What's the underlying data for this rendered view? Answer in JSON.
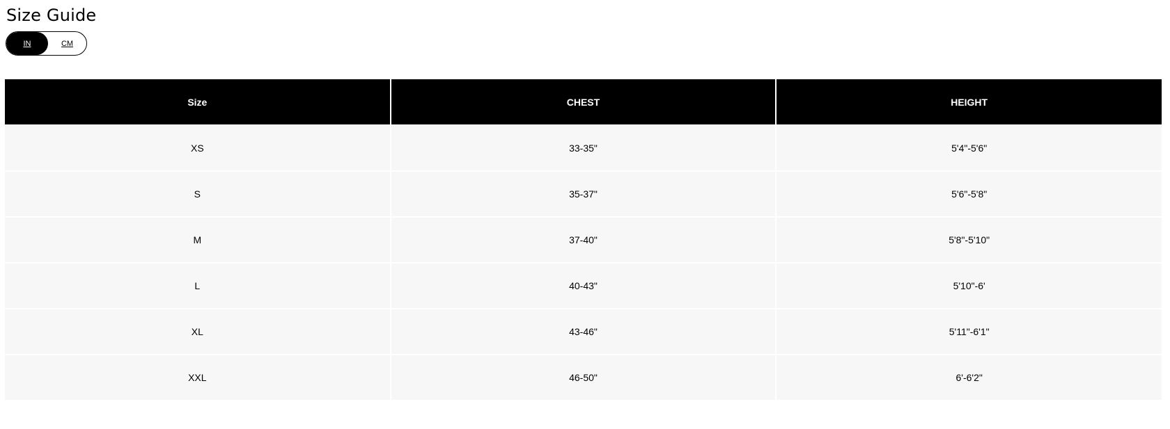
{
  "title": "Size Guide",
  "unit_toggle": {
    "options": [
      "IN",
      "CM"
    ],
    "selected": "IN"
  },
  "table": {
    "headers": [
      "Size",
      "CHEST",
      "HEIGHT"
    ],
    "rows": [
      [
        "XS",
        "33-35\"",
        "5'4\"-5'6\""
      ],
      [
        "S",
        "35-37\"",
        "5'6\"-5'8\""
      ],
      [
        "M",
        "37-40\"",
        "5'8\"-5'10\""
      ],
      [
        "L",
        "40-43\"",
        "5'10\"-6'"
      ],
      [
        "XL",
        "43-46\"",
        "5'11\"-6'1\""
      ],
      [
        "XXL",
        "46-50\"",
        "6'-6'2\""
      ]
    ]
  }
}
